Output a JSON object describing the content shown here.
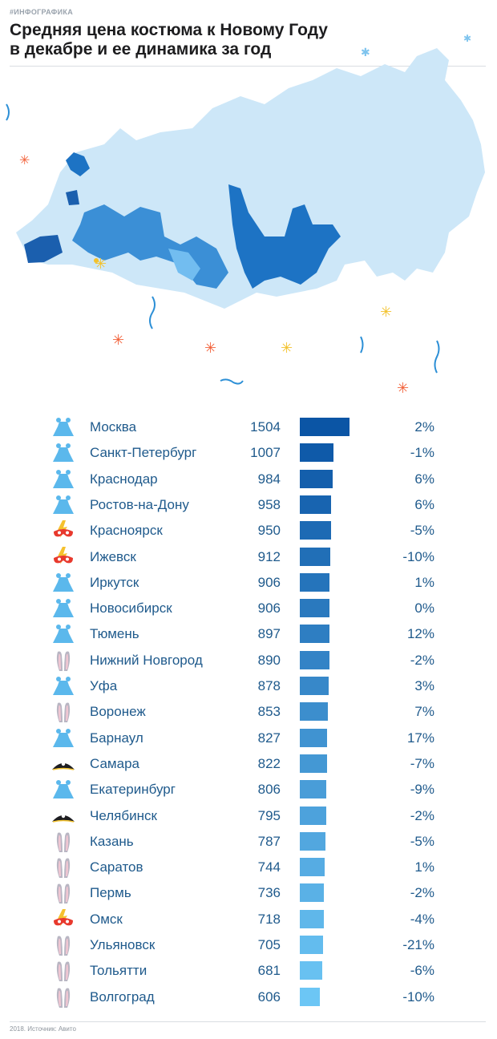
{
  "header": {
    "tag": "#ИНФОГРАФИКА",
    "title_line1": "Средняя цена костюма к Новому Году",
    "title_line2": "в декабре и ее динамика за год"
  },
  "footer": {
    "source": "2018. Источник: Авито"
  },
  "colors": {
    "bar_dark": "#0b55a5",
    "bar_light": "#6cc6f5",
    "text": "#1f5a8c",
    "map_base": "#cde7f8"
  },
  "icons": {
    "dress": "dress-icon",
    "mask": "superhero-mask-icon",
    "bunny": "bunny-ears-icon",
    "pirate": "pirate-hat-icon"
  },
  "chart_data": {
    "type": "bar",
    "orientation": "horizontal",
    "categories": [
      "Москва",
      "Санкт-Петербург",
      "Краснодар",
      "Ростов-на-Дону",
      "Красноярск",
      "Ижевск",
      "Иркутск",
      "Новосибирск",
      "Тюмень",
      "Нижний Новгород",
      "Уфа",
      "Воронеж",
      "Барнаул",
      "Самара",
      "Екатеринбург",
      "Челябинск",
      "Казань",
      "Саратов",
      "Пермь",
      "Омск",
      "Ульяновск",
      "Тольятти",
      "Волгоград"
    ],
    "values": [
      1504,
      1007,
      984,
      958,
      950,
      912,
      906,
      906,
      897,
      890,
      878,
      853,
      827,
      822,
      806,
      795,
      787,
      744,
      736,
      718,
      705,
      681,
      606
    ],
    "changes": [
      "2%",
      "-1%",
      "6%",
      "6%",
      "-5%",
      "-10%",
      "1%",
      "0%",
      "12%",
      "-2%",
      "3%",
      "7%",
      "17%",
      "-7%",
      "-9%",
      "-2%",
      "-5%",
      "1%",
      "-2%",
      "-4%",
      "-21%",
      "-6%",
      "-10%"
    ],
    "icons": [
      "dress",
      "dress",
      "dress",
      "dress",
      "mask",
      "mask",
      "dress",
      "dress",
      "dress",
      "bunny",
      "dress",
      "bunny",
      "dress",
      "pirate",
      "dress",
      "pirate",
      "bunny",
      "bunny",
      "bunny",
      "mask",
      "bunny",
      "bunny",
      "bunny"
    ],
    "xlim": [
      0,
      1504
    ]
  }
}
